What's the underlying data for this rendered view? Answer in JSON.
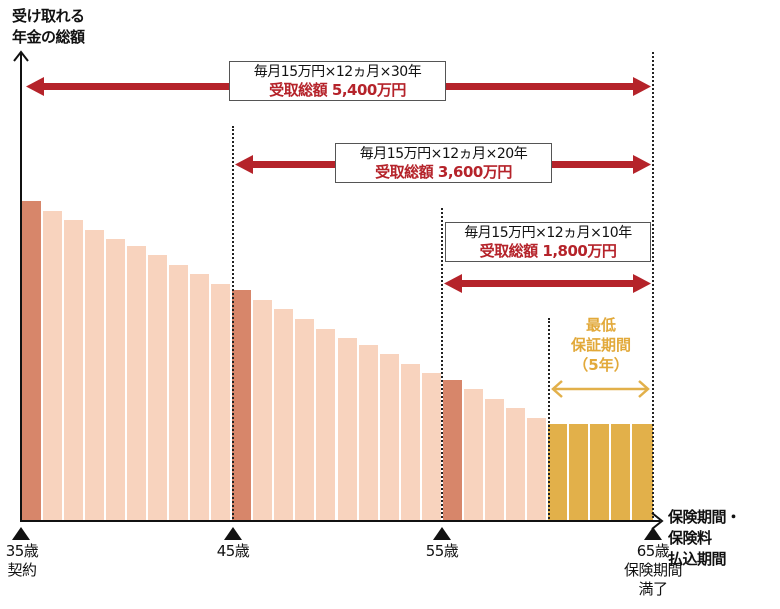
{
  "chart_data": {
    "type": "bar",
    "title": "",
    "ylabel": "受け取れる年金の総額",
    "xlabel": "保険期間・保険料払込期間",
    "x_ticks": [
      {
        "label": "35歳",
        "sub": "契約"
      },
      {
        "label": "45歳",
        "sub": ""
      },
      {
        "label": "55歳",
        "sub": ""
      },
      {
        "label": "65歳",
        "sub": "保険期間満了"
      }
    ],
    "bars_per_year": 30,
    "values": [
      100,
      97,
      94,
      91,
      88,
      86,
      83,
      80,
      77,
      74,
      72,
      69,
      66,
      63,
      60,
      57,
      55,
      52,
      49,
      46,
      44,
      41,
      38,
      35,
      32,
      30,
      30,
      30,
      30,
      30
    ],
    "highlight_indices": [
      0,
      10,
      20
    ],
    "guarantee_indices": [
      25,
      26,
      27,
      28,
      29
    ],
    "colors": {
      "light": "#f8d3be",
      "highlight": "#d7866a",
      "guarantee": "#e2b04a",
      "arrow": "#b5232a",
      "guarantee_text": "#e2a93a"
    },
    "annotations": [
      {
        "line1": "毎月15万円×12ヵ月×30年",
        "line2": "受取総額 5,400万円",
        "span": "35歳-65歳"
      },
      {
        "line1": "毎月15万円×12ヵ月×20年",
        "line2": "受取総額 3,600万円",
        "span": "45歳-65歳"
      },
      {
        "line1": "毎月15万円×12ヵ月×10年",
        "line2": "受取総額 1,800万円",
        "span": "55歳-65歳"
      },
      {
        "line1": "最低",
        "line2": "保証期間",
        "line3": "（5年）",
        "span": "60歳-65歳"
      }
    ]
  },
  "labels": {
    "ylabel_1": "受け取れる",
    "ylabel_2": "年金の総額",
    "xlabel_1": "保険期間・",
    "xlabel_2": "保険料",
    "xlabel_3": "払込期間",
    "tick35": "35歳",
    "tick35_sub": "契約",
    "tick45": "45歳",
    "tick55": "55歳",
    "tick65": "65歳",
    "tick65_sub1": "保険期間",
    "tick65_sub2": "満了",
    "a30_1": "毎月15万円×12ヵ月×30年",
    "a30_2": "受取総額 5,400万円",
    "a20_1": "毎月15万円×12ヵ月×20年",
    "a20_2": "受取総額 3,600万円",
    "a10_1": "毎月15万円×12ヵ月×10年",
    "a10_2": "受取総額 1,800万円",
    "g1": "最低",
    "g2": "保証期間",
    "g3": "（5年）"
  }
}
